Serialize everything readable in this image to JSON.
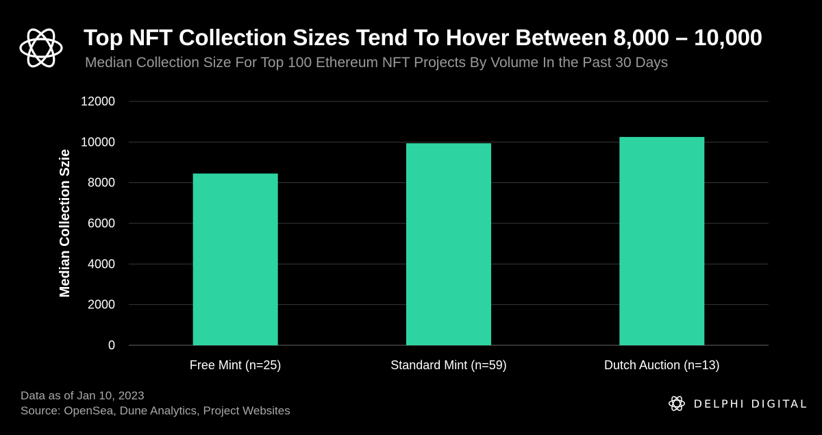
{
  "header": {
    "title": "Top NFT Collection Sizes Tend To Hover Between 8,000 – 10,000",
    "subtitle": "Median Collection Size For Top 100 Ethereum NFT Projects By Volume In the Past 30 Days"
  },
  "footer": {
    "date_note": "Data as of Jan 10, 2023",
    "source": "Source: OpenSea, Dune Analytics, Project Websites",
    "brand": "DELPHI DIGITAL"
  },
  "icons": {
    "logo": "delphi-knot-icon"
  },
  "colors": {
    "bar": "#2dd4a2",
    "background": "#000000",
    "grid": "#3a3a3a"
  },
  "chart_data": {
    "type": "bar",
    "title": "Top NFT Collection Sizes Tend To Hover Between 8,000 – 10,000",
    "subtitle": "Median Collection Size For Top 100 Ethereum NFT Projects By Volume In the Past 30 Days",
    "xlabel": "",
    "ylabel": "Median Collection Szie",
    "categories": [
      "Free Mint (n=25)",
      "Standard Mint (n=59)",
      "Dutch Auction (n=13)"
    ],
    "values": [
      8450,
      9940,
      10250
    ],
    "ylim": [
      0,
      12000
    ],
    "yticks": [
      0,
      2000,
      4000,
      6000,
      8000,
      10000,
      12000
    ],
    "ytick_labels": [
      "0",
      "2000",
      "4000",
      "6000",
      "8000",
      "10000",
      "12000"
    ],
    "grid": true,
    "legend": "none"
  }
}
